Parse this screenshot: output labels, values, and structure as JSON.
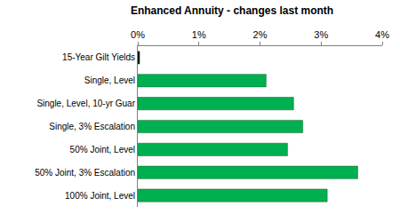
{
  "chart_data": {
    "type": "bar",
    "orientation": "horizontal",
    "title": "Enhanced Annuity - changes last month",
    "categories": [
      "15-Year Gilt Yields",
      "Single, Level",
      "Single, Level, 10-yr Guar",
      "Single, 3% Escalation",
      "50% Joint, Level",
      "50% Joint, 3% Escalation",
      "100% Joint, Level"
    ],
    "values": [
      0.03,
      2.1,
      2.55,
      2.7,
      2.45,
      3.6,
      3.1
    ],
    "colors": [
      "#000000",
      "#00b050",
      "#00b050",
      "#00b050",
      "#00b050",
      "#00b050",
      "#00b050"
    ],
    "xlim": [
      0,
      4
    ],
    "xticks": [
      {
        "value": 0,
        "label": "0%"
      },
      {
        "value": 1,
        "label": "1%"
      },
      {
        "value": 2,
        "label": "2%"
      },
      {
        "value": 3,
        "label": "3%"
      },
      {
        "value": 4,
        "label": "4%"
      }
    ],
    "grid": false
  }
}
